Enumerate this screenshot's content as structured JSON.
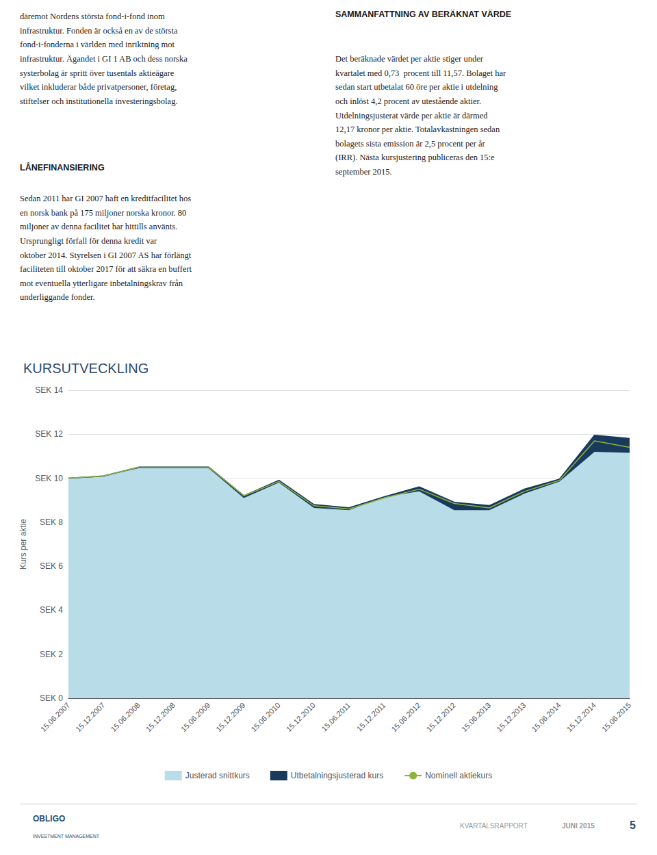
{
  "chart_data": {
    "type": "area",
    "title": "KURSUTVECKLING",
    "title_color": "#2e4a6e",
    "y_label": "Kurs per aktie",
    "categories": [
      "15.06.2007",
      "15.12.2007",
      "15.06.2008",
      "15.12.2008",
      "15.06.2009",
      "15.12.2009",
      "15.06.2010",
      "15.12.2010",
      "15.06.2011",
      "15.12.2011",
      "15.06.2012",
      "15.12.2012",
      "15.06.2013",
      "15.12.2013",
      "15.06.2014",
      "15.12.2014",
      "15.06.2015"
    ],
    "series": [
      {
        "name": "Justerad snittkurs",
        "type": "area",
        "color": "#b8dce8",
        "values": [
          10.0,
          10.1,
          10.45,
          10.45,
          10.45,
          9.1,
          9.8,
          8.65,
          8.55,
          9.15,
          9.4,
          8.55,
          8.55,
          9.3,
          9.85,
          11.2,
          11.15
        ]
      },
      {
        "name": "Utbetalningsjusterad kurs",
        "type": "area",
        "color": "#1a3a5c",
        "values": [
          10.0,
          10.1,
          10.5,
          10.5,
          10.5,
          9.2,
          9.9,
          8.8,
          8.65,
          9.15,
          9.6,
          8.9,
          8.75,
          9.5,
          9.95,
          11.95,
          11.8
        ]
      },
      {
        "name": "Nominell aktiekurs",
        "type": "line",
        "color": "#8db43a",
        "values": [
          10.0,
          10.1,
          10.5,
          10.5,
          10.5,
          9.2,
          9.85,
          8.75,
          8.6,
          9.1,
          9.5,
          8.85,
          8.65,
          9.4,
          9.9,
          11.7,
          11.4
        ]
      }
    ],
    "ylim": [
      0,
      14
    ],
    "yticks": [
      {
        "value": 0,
        "label": "SEK 0"
      },
      {
        "value": 2,
        "label": "SEK 2"
      },
      {
        "value": 4,
        "label": "SEK 4"
      },
      {
        "value": 6,
        "label": "SEK 6"
      },
      {
        "value": 8,
        "label": "SEK 8"
      },
      {
        "value": 10,
        "label": "SEK 10"
      },
      {
        "value": 12,
        "label": "SEK 12"
      },
      {
        "value": 14,
        "label": "SEK 14"
      }
    ],
    "grid": true,
    "legend": "bottom",
    "annotations": [
      "däremot Nordens största fond-i-fond inom\ninfrastruktur. Fonden är också en av de största\nfond-i-fonderna i världen med inriktning mot\ninfrastruktur. Ägandet i GI 1 AB och dess norska\nsysterbolag är spritt över tusentals aktieägare\nvilket inkluderar både privatpersoner, företag,\nstiftelser och institutionella investeringsbolag.",
      "LÅNEFINANSIERING",
      "Sedan 2011 har GI 2007 haft en kreditfacilitet hos\nen norsk bank på 175 miljoner norska kronor. 80\nmiljoner av denna facilitet har hittills använts.\nUrsprungligt förfall för denna kredit var\noktober 2014. Styrelsen i GI 2007 AS har förlängt\nfaciliteten till oktober 2017 för att säkra en buffert\nmot eventuella ytterligare inbetalningskrav från\nunderliggande fonder.",
      "SAMMANFATTNING AV BERÄKNAT VÄRDE",
      "Det beräknade värdet per aktie stiger under\nkvartalet med 0,73  procent till 11,57. Bolaget har\nsedan start utbetalat 60 öre per aktie i utdelning\noch inlöst 4,2 procent av utestående aktier.\nUtdelningsjusterat värde per aktie är därmed\n12,17 kronor per aktie. Totalavkastningen sedan\nbolagets sista emission är 2,5 procent per år\n(IRR). Nästa kursjustering publiceras den 15:e\nseptember 2015.",
      "OBLIGO",
      "INVESTMENT MANAGEMENT",
      "KVARTALSRAPPORT",
      "JUNI 2015",
      "5"
    ]
  }
}
